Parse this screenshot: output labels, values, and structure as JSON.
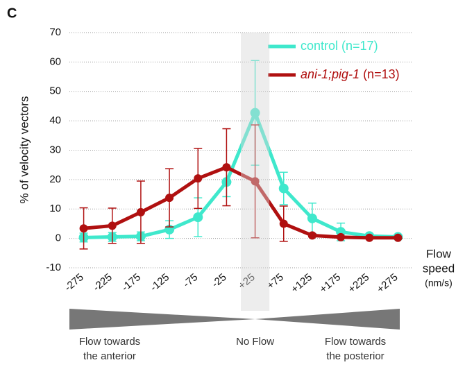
{
  "chart_data": {
    "type": "line",
    "panel_label": "C",
    "ylabel": "% of velocity vectors",
    "xlabel_lines": [
      "Flow",
      "speed",
      "(nm/s)"
    ],
    "categories": [
      "-275",
      "-225",
      "-175",
      "-125",
      "-75",
      "-25",
      "+25",
      "+75",
      "+125",
      "+175",
      "+225",
      "+275"
    ],
    "series": [
      {
        "name": "control (n=17)",
        "color": "#3fe8cc",
        "values": [
          0.3,
          0.5,
          0.7,
          3,
          7.2,
          19.2,
          42.7,
          17,
          6.8,
          2.2,
          0.8,
          0.5
        ],
        "errors": [
          1.5,
          1.5,
          1.5,
          3,
          6.6,
          5,
          17.8,
          5.5,
          5.2,
          3,
          0.5,
          0.5
        ]
      },
      {
        "name": "ani-1;pig-1 (n=13)",
        "color": "#b01010",
        "values": [
          3.4,
          4.3,
          8.9,
          13.8,
          20.4,
          24.2,
          19.4,
          5,
          1,
          0.4,
          0.2,
          0.2
        ],
        "errors": [
          7,
          6,
          10.6,
          9.9,
          10.2,
          13.1,
          19.2,
          6,
          0.5,
          0.3,
          0.2,
          0.2
        ]
      }
    ],
    "ylim": [
      -10,
      70
    ],
    "yticks": [
      -10,
      0,
      10,
      20,
      30,
      40,
      50,
      60,
      70
    ],
    "grid": true,
    "highlight_category": 6,
    "annotations": {
      "left": [
        "Flow towards",
        "the anterior"
      ],
      "center": [
        "No Flow"
      ],
      "right": [
        "Flow towards",
        "the posterior"
      ]
    }
  }
}
